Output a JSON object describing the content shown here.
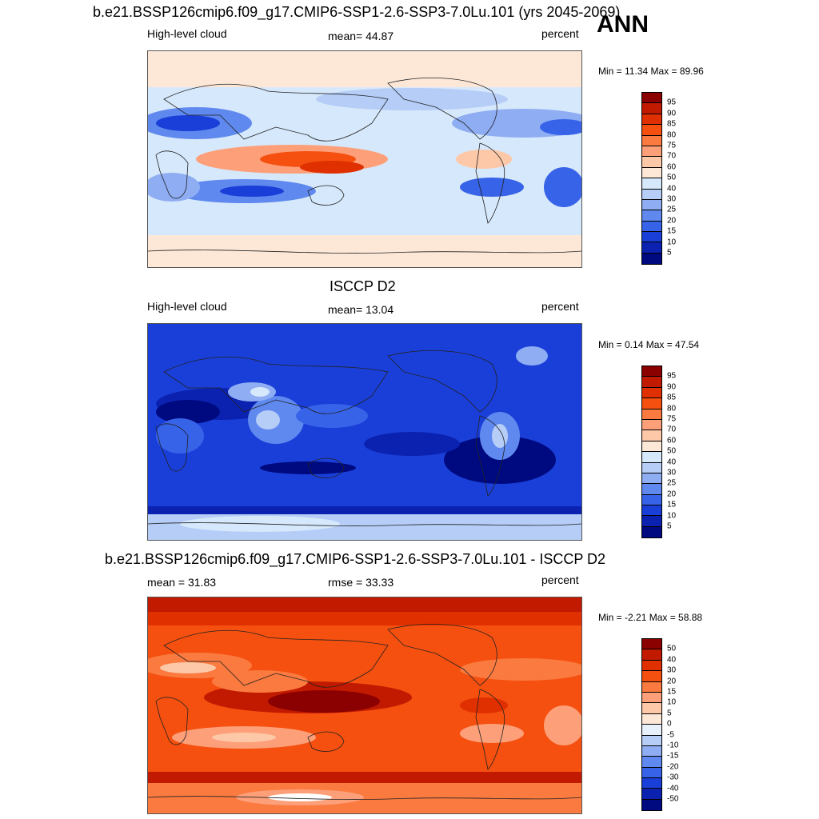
{
  "season": "ANN",
  "panels": [
    {
      "title": "b.e21.BSSP126cmip6.f09_g17.CMIP6-SSP1-2.6-SSP3-7.0Lu.101 (yrs 2045-2069)",
      "left_label": "High-level cloud",
      "center_label": "mean=  44.87",
      "units": "percent",
      "min_max": "Min =  11.34 Max =  89.96",
      "colorbar_labels": [
        "95",
        "90",
        "85",
        "80",
        "75",
        "70",
        "60",
        "50",
        "40",
        "30",
        "25",
        "20",
        "15",
        "10",
        "5"
      ],
      "colorbar_colors": [
        "#8b0000",
        "#c21a00",
        "#e03000",
        "#f55010",
        "#fa7a40",
        "#fda07a",
        "#fdc8a8",
        "#fde8d8",
        "#d6e8fb",
        "#b5cdf7",
        "#8eadf3",
        "#5f89ee",
        "#3763e8",
        "#1a3fd8",
        "#0b22b0",
        "#000a80"
      ]
    },
    {
      "title": "ISCCP D2",
      "left_label": "High-level cloud",
      "center_label": "mean=  13.04",
      "units": "percent",
      "min_max": "Min =   0.14 Max =  47.54",
      "colorbar_labels": [
        "95",
        "90",
        "85",
        "80",
        "75",
        "70",
        "60",
        "50",
        "40",
        "30",
        "25",
        "20",
        "15",
        "10",
        "5"
      ],
      "colorbar_colors": [
        "#8b0000",
        "#c21a00",
        "#e03000",
        "#f55010",
        "#fa7a40",
        "#fda07a",
        "#fdc8a8",
        "#fde8d8",
        "#d6e8fb",
        "#b5cdf7",
        "#8eadf3",
        "#5f89ee",
        "#3763e8",
        "#1a3fd8",
        "#0b22b0",
        "#000a80"
      ]
    },
    {
      "title": "b.e21.BSSP126cmip6.f09_g17.CMIP6-SSP1-2.6-SSP3-7.0Lu.101 - ISCCP D2",
      "left_label": "mean =  31.83",
      "center_label": "rmse =  33.33",
      "units": "percent",
      "min_max": "Min =  -2.21 Max =  58.88",
      "colorbar_labels": [
        "50",
        "40",
        "30",
        "20",
        "15",
        "10",
        "5",
        "0",
        "-5",
        "-10",
        "-15",
        "-20",
        "-30",
        "-40",
        "-50"
      ],
      "colorbar_colors": [
        "#8b0000",
        "#c21a00",
        "#e03000",
        "#f55010",
        "#fa7a40",
        "#fda07a",
        "#fdc8a8",
        "#fde8d8",
        "#e8f0fb",
        "#b5cdf7",
        "#8eadf3",
        "#5f89ee",
        "#3763e8",
        "#1a3fd8",
        "#0b22b0",
        "#000a80"
      ]
    }
  ]
}
